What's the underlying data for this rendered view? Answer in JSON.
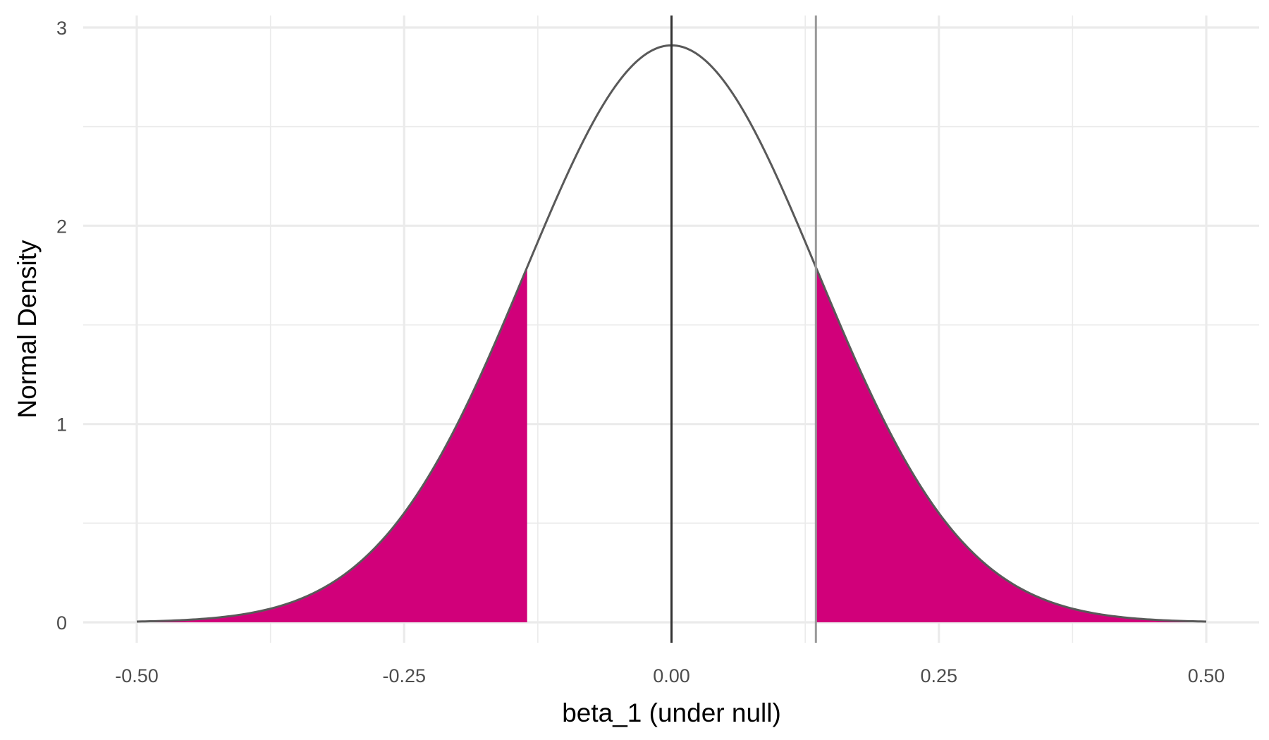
{
  "chart_data": {
    "type": "area",
    "title": "",
    "xlabel": "beta_1 (under null)",
    "ylabel": "Normal Density",
    "xlim": [
      -0.5,
      0.5
    ],
    "ylim": [
      0,
      3
    ],
    "x_ticks": [
      -0.5,
      -0.25,
      0.0,
      0.25,
      0.5
    ],
    "x_tick_labels": [
      "-0.50",
      "-0.25",
      "0.00",
      "0.25",
      "0.50"
    ],
    "y_ticks": [
      0,
      1,
      2,
      3
    ],
    "y_tick_labels": [
      "0",
      "1",
      "2",
      "3"
    ],
    "grid": true,
    "legend": "none",
    "density": {
      "distribution": "normal",
      "mean": 0.0,
      "sd": 0.137,
      "peak": 2.91
    },
    "shaded_regions": [
      {
        "from": -0.5,
        "to": -0.135
      },
      {
        "from": 0.135,
        "to": 0.5
      }
    ],
    "vertical_lines": [
      {
        "x": 0.0,
        "color": "#333333"
      },
      {
        "x": 0.135,
        "color": "#999999"
      }
    ],
    "colors": {
      "fill": "#d1007a",
      "curve": "#595959",
      "grid": "#ebebeb"
    }
  }
}
